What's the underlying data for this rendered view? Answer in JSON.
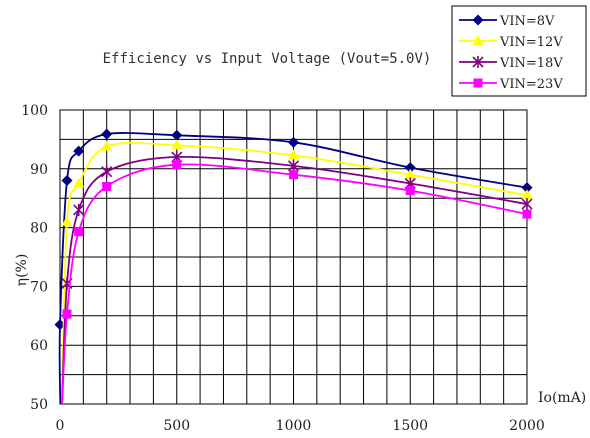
{
  "chart_data": {
    "type": "line",
    "title": "Efficiency vs Input Voltage (Vout=5.0V)",
    "xlabel": "Io(mA)",
    "ylabel": "η(%)",
    "xlim": [
      0,
      2000
    ],
    "ylim": [
      50,
      100
    ],
    "x_ticks": [
      0,
      500,
      1000,
      1500,
      2000
    ],
    "y_ticks": [
      50,
      60,
      70,
      80,
      90,
      100
    ],
    "grid": true,
    "legend_position": "top-right",
    "series": [
      {
        "name": "VIN=8V",
        "color": "#000080",
        "marker": "diamond",
        "x": [
          0,
          30,
          80,
          200,
          500,
          1000,
          1500,
          2000
        ],
        "y": [
          63.5,
          88,
          93,
          95.9,
          95.7,
          94.5,
          90.2,
          86.8
        ]
      },
      {
        "name": "VIN=12V",
        "color": "#ffff00",
        "marker": "triangle",
        "x": [
          30,
          80,
          200,
          500,
          1000,
          1500,
          2000
        ],
        "y": [
          81,
          87.5,
          93.8,
          94,
          92.3,
          89,
          85.5
        ]
      },
      {
        "name": "VIN=18V",
        "color": "#800080",
        "marker": "star",
        "x": [
          30,
          80,
          200,
          500,
          1000,
          1500,
          2000
        ],
        "y": [
          70.5,
          83,
          89.5,
          92,
          90.5,
          87.5,
          84
        ]
      },
      {
        "name": "VIN=23V",
        "color": "#ff00ff",
        "marker": "square",
        "x": [
          30,
          80,
          200,
          500,
          1000,
          1500,
          2000
        ],
        "y": [
          65.3,
          79.3,
          87,
          90.7,
          89,
          86.3,
          82.3
        ]
      }
    ]
  }
}
